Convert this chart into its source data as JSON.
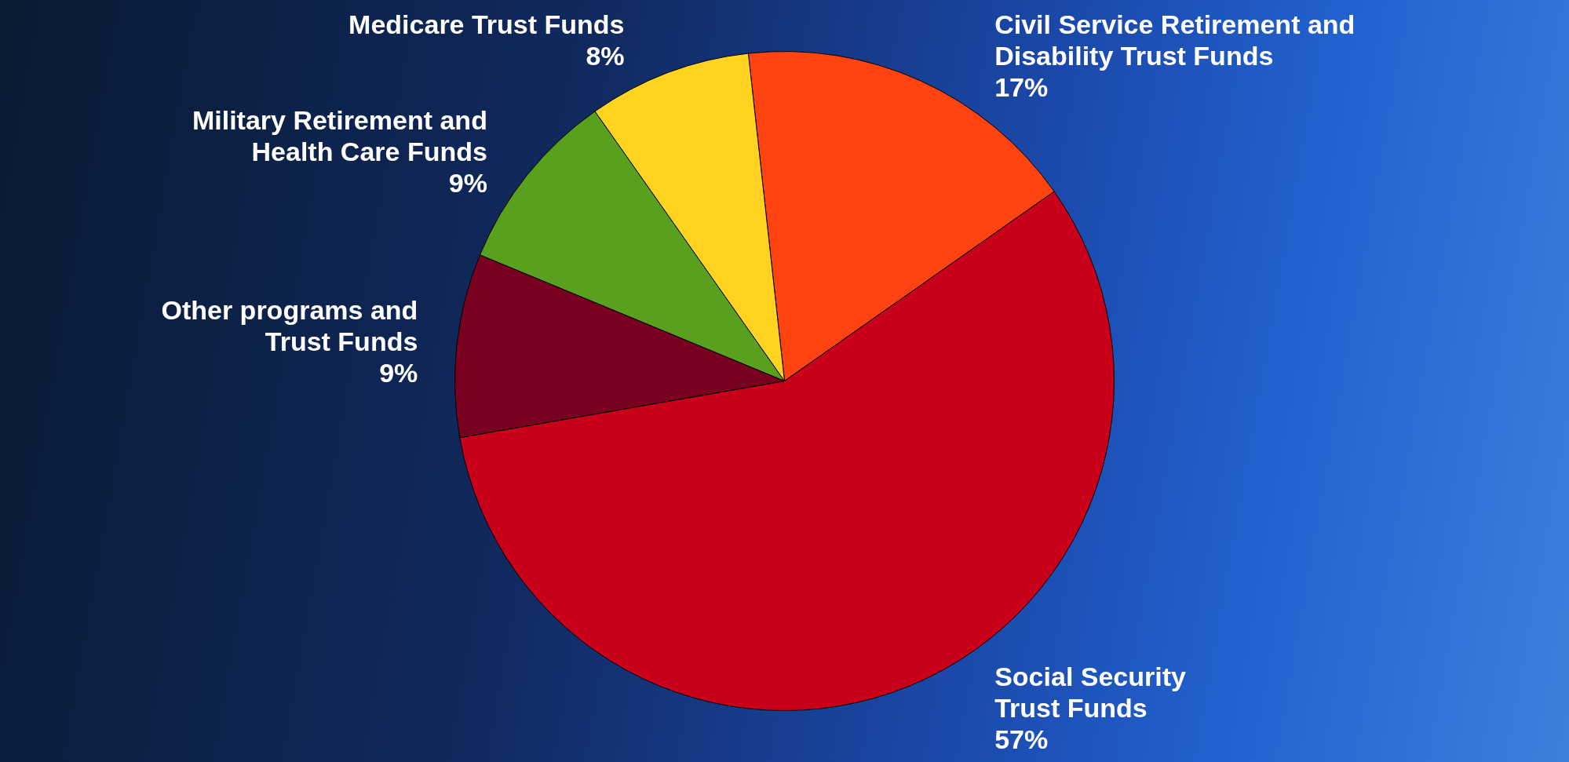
{
  "chart_data": {
    "type": "pie",
    "categories": [
      "Civil Service Retirement and\nDisability Trust Funds",
      "Social Security\nTrust Funds",
      "Other programs and\nTrust Funds",
      "Military Retirement and\nHealth Care Funds",
      "Medicare Trust Funds"
    ],
    "values": [
      17,
      57,
      9,
      9,
      8
    ],
    "colors": [
      "#ff4411",
      "#c8001a",
      "#7a0020",
      "#58a01e",
      "#ffd320"
    ],
    "value_labels": [
      "17%",
      "57%",
      "9%",
      "9%",
      "8%"
    ]
  }
}
